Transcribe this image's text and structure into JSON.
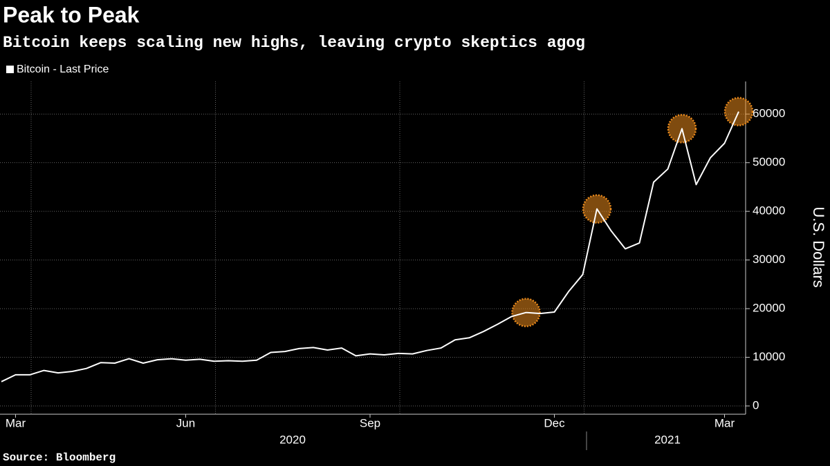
{
  "chart_data": {
    "type": "line",
    "title": "Peak to Peak",
    "subtitle": "Bitcoin keeps scaling new highs, leaving crypto skeptics agog",
    "source": "Source: Bloomberg",
    "y_axis_label": "U.S. Dollars",
    "year_labels": [
      "2020",
      "2021"
    ],
    "categories": [
      null,
      "Mar",
      null,
      null,
      null,
      null,
      null,
      null,
      null,
      null,
      null,
      null,
      null,
      "Jun",
      null,
      null,
      null,
      null,
      null,
      null,
      null,
      null,
      null,
      null,
      null,
      null,
      "Sep",
      null,
      null,
      null,
      null,
      null,
      null,
      null,
      null,
      null,
      null,
      null,
      null,
      "Dec",
      null,
      null,
      null,
      null,
      null,
      null,
      null,
      null,
      null,
      null,
      null,
      "Mar",
      null
    ],
    "series": [
      {
        "name": "Bitcoin - Last Price",
        "color": "#ffffff",
        "values": [
          5000,
          6400,
          6400,
          7300,
          6800,
          7100,
          7700,
          8900,
          8800,
          9700,
          8800,
          9500,
          9700,
          9400,
          9600,
          9200,
          9300,
          9200,
          9400,
          11000,
          11200,
          11800,
          12000,
          11500,
          11900,
          10300,
          10700,
          10500,
          10800,
          10700,
          11400,
          11900,
          13600,
          14000,
          15300,
          16800,
          18400,
          19200,
          19000,
          19300,
          23500,
          27000,
          40500,
          36000,
          32300,
          33500,
          46000,
          48700,
          57000,
          45500,
          51000,
          54000,
          60500
        ]
      }
    ],
    "highlight_color": "#e8891c",
    "ylim": [
      0,
      66700
    ],
    "yticks": [
      0,
      10000,
      20000,
      30000,
      40000,
      50000,
      60000
    ],
    "grid": true
  }
}
